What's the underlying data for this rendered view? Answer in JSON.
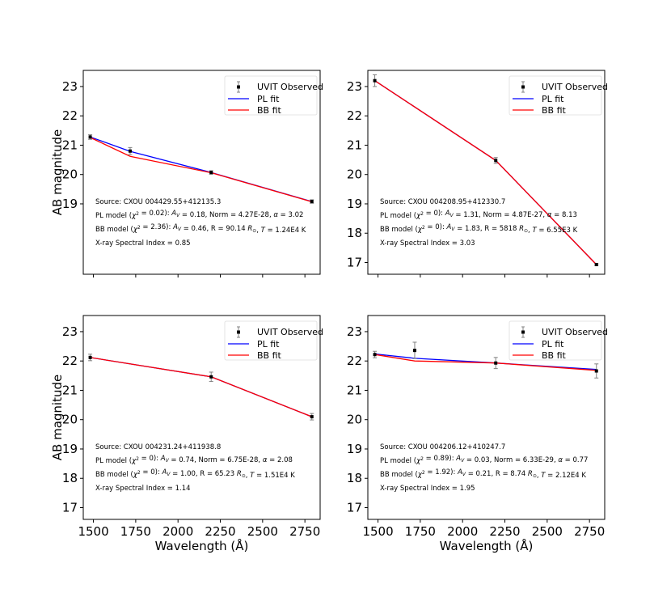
{
  "colors": {
    "observed": "#000000",
    "errorbar": "#808080",
    "pl": "#0000ff",
    "bb": "#ff0000"
  },
  "shared": {
    "xlabel": "Wavelength (Å)",
    "ylabel": "AB magnitude",
    "xlim": [
      1440,
      2840
    ],
    "xticks": [
      1500,
      1750,
      2000,
      2250,
      2500,
      2750
    ],
    "xtick_labels": [
      "1500",
      "1750",
      "2000",
      "2250",
      "2500",
      "2750"
    ],
    "legend": {
      "observed": "UVIT Observed",
      "pl": "PL fit",
      "bb": "BB fit"
    }
  },
  "chart_data": [
    {
      "type": "line",
      "ylim": [
        16.6,
        23.55
      ],
      "yticks": [
        19,
        20,
        21,
        22,
        23
      ],
      "ytick_labels": [
        "19",
        "20",
        "21",
        "22",
        "23"
      ],
      "observed": {
        "x": [
          1481,
          1717,
          2196,
          2791
        ],
        "y": [
          21.28,
          20.8,
          20.07,
          19.08
        ],
        "err": [
          0.08,
          0.12,
          0.06,
          0.06
        ]
      },
      "pl_fit": {
        "x": [
          1481,
          1717,
          2196,
          2791
        ],
        "y": [
          21.28,
          20.79,
          20.07,
          19.08
        ]
      },
      "bb_fit": {
        "x": [
          1481,
          1717,
          2196,
          2791
        ],
        "y": [
          21.26,
          20.62,
          20.06,
          19.07
        ]
      },
      "annotations": {
        "source": "Source: CXOU 004429.55+412135.3",
        "pl": "PL model (χ² = 0.02): A_V = 0.18, Norm = 4.27E-28, α = 3.02",
        "bb": "BB model (χ² = 2.36): A_V = 0.46, R = 90.14 R_☉, T = 1.24E4 K",
        "xray": "X-ray Spectral Index = 0.85"
      }
    },
    {
      "type": "line",
      "ylim": [
        16.6,
        23.55
      ],
      "yticks": [
        17,
        18,
        19,
        20,
        21,
        22,
        23
      ],
      "ytick_labels": [
        "17",
        "18",
        "19",
        "20",
        "21",
        "22",
        "23"
      ],
      "observed": {
        "x": [
          1481,
          2196,
          2791
        ],
        "y": [
          23.2,
          20.48,
          16.93
        ],
        "err": [
          0.2,
          0.1,
          0.03
        ]
      },
      "pl_fit": {
        "x": [
          1481,
          2196,
          2791
        ],
        "y": [
          23.2,
          20.48,
          16.93
        ]
      },
      "bb_fit": {
        "x": [
          1481,
          2196,
          2791
        ],
        "y": [
          23.2,
          20.48,
          16.93
        ]
      },
      "annotations": {
        "source": "Source: CXOU 004208.95+412330.7",
        "pl": "PL model (χ² = 0): A_V = 1.31, Norm = 4.87E-27, α = 8.13",
        "bb": "BB model (χ² = 0): A_V = 1.83, R = 5818 R_☉, T = 6.55E3 K",
        "xray": "X-ray Spectral Index = 3.03"
      }
    },
    {
      "type": "line",
      "ylim": [
        16.6,
        23.55
      ],
      "yticks": [
        17,
        18,
        19,
        20,
        21,
        22,
        23
      ],
      "ytick_labels": [
        "17",
        "18",
        "19",
        "20",
        "21",
        "22",
        "23"
      ],
      "observed": {
        "x": [
          1481,
          2196,
          2791
        ],
        "y": [
          22.12,
          21.46,
          20.1
        ],
        "err": [
          0.11,
          0.16,
          0.11
        ]
      },
      "pl_fit": {
        "x": [
          1481,
          2196,
          2791
        ],
        "y": [
          22.12,
          21.46,
          20.1
        ]
      },
      "bb_fit": {
        "x": [
          1481,
          2196,
          2791
        ],
        "y": [
          22.12,
          21.46,
          20.1
        ]
      },
      "annotations": {
        "source": "Source: CXOU 004231.24+411938.8",
        "pl": "PL model (χ² = 0): A_V = 0.74, Norm = 6.75E-28, α = 2.08",
        "bb": "BB model (χ² = 0): A_V = 1.00, R = 65.23 R_☉, T = 1.51E4 K",
        "xray": "X-ray Spectral Index = 1.14"
      }
    },
    {
      "type": "line",
      "ylim": [
        16.6,
        23.55
      ],
      "yticks": [
        17,
        18,
        19,
        20,
        21,
        22,
        23
      ],
      "ytick_labels": [
        "17",
        "18",
        "19",
        "20",
        "21",
        "22",
        "23"
      ],
      "observed": {
        "x": [
          1481,
          1717,
          2196,
          2791
        ],
        "y": [
          22.22,
          22.36,
          21.93,
          21.66
        ],
        "err": [
          0.11,
          0.28,
          0.19,
          0.24
        ]
      },
      "pl_fit": {
        "x": [
          1481,
          1717,
          2196,
          2791
        ],
        "y": [
          22.24,
          22.09,
          21.93,
          21.71
        ]
      },
      "bb_fit": {
        "x": [
          1481,
          1717,
          2196,
          2791
        ],
        "y": [
          22.22,
          22.0,
          21.93,
          21.68
        ]
      },
      "annotations": {
        "source": "Source: CXOU 004206.12+410247.7",
        "pl": "PL model (χ² = 0.89): A_V = 0.03, Norm = 6.33E-29, α = 0.77",
        "bb": "BB model (χ² = 1.92): A_V = 0.21, R = 8.74 R_☉, T = 2.12E4 K",
        "xray": "X-ray Spectral Index = 1.95"
      }
    }
  ]
}
